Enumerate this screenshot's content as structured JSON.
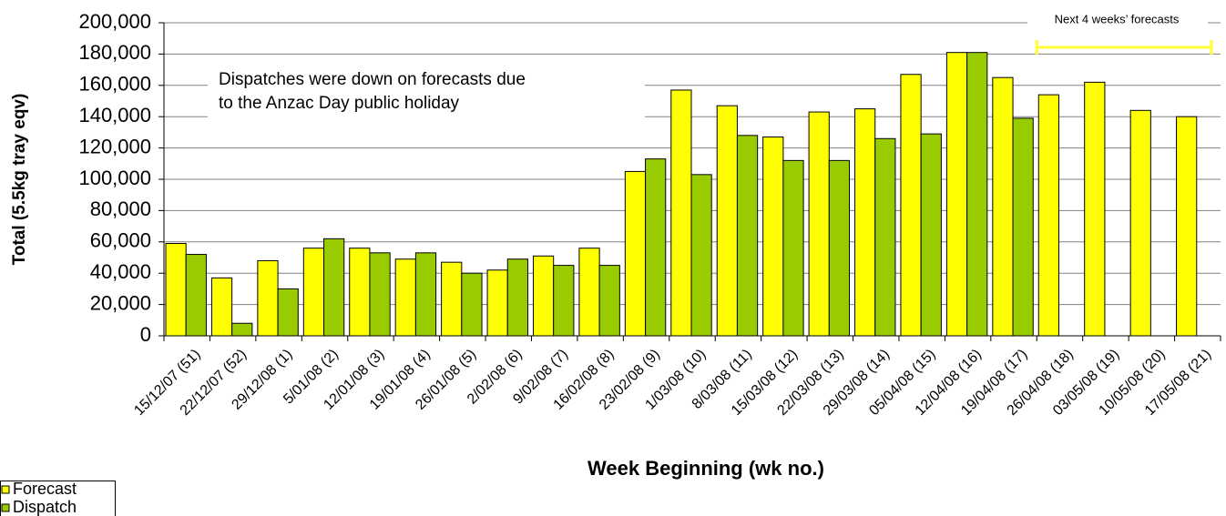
{
  "chart_data": {
    "type": "bar",
    "x_label": "Week Beginning (wk no.)",
    "y_label": "Total (5.5kg tray eqv)",
    "annotation": [
      "Dispatches were down on forecasts due",
      "to the Anzac Day public holiday"
    ],
    "bracket_label": "Next 4 weeks’ forecasts",
    "bracket_color": "#ffff33",
    "categories": [
      "15/12/07 (51)",
      "22/12/07 (52)",
      "29/12/08 (1)",
      "5/01/08 (2)",
      "12/01/08 (3)",
      "19/01/08 (4)",
      "26/01/08 (5)",
      "2/02/08 (6)",
      "9/02/08 (7)",
      "16/02/08 (8)",
      "23/02/08 (9)",
      "1/03/08 (10)",
      "8/03/08 (11)",
      "15/03/08 (12)",
      "22/03/08 (13)",
      "29/03/08 (14)",
      "05/04/08 (15)",
      "12/04/08 (16)",
      "19/04/08 (17)",
      "26/04/08 (18)",
      "03/05/08 (19)",
      "10/05/08 (20)",
      "17/05/08 (21)"
    ],
    "series": [
      {
        "name": "Forecast",
        "color": "#ffff00",
        "values": [
          59000,
          37000,
          48000,
          56000,
          56000,
          49000,
          47000,
          42000,
          51000,
          56000,
          105000,
          157000,
          147000,
          127000,
          143000,
          145000,
          167000,
          181000,
          165000,
          154000,
          162000,
          144000,
          140000
        ]
      },
      {
        "name": "Dispatch",
        "color": "#99cc00",
        "values": [
          52000,
          8000,
          30000,
          62000,
          53000,
          53000,
          40000,
          49000,
          45000,
          45000,
          113000,
          103000,
          128000,
          112000,
          112000,
          126000,
          129000,
          181000,
          139000,
          null,
          null,
          null,
          null
        ]
      }
    ],
    "ylim": [
      0,
      200000
    ],
    "yticks": [
      0,
      {
        "value": 20000,
        "label": "20,000"
      },
      {
        "value": 40000,
        "label": "40,000"
      },
      {
        "value": 60000,
        "label": "60,000"
      },
      {
        "value": 80000,
        "label": "80,000"
      },
      {
        "value": 100000,
        "label": "100,000"
      },
      {
        "value": 120000,
        "label": "120,000"
      },
      {
        "value": 140000,
        "label": "140,000"
      },
      {
        "value": 160000,
        "label": "160,000"
      },
      {
        "value": 180000,
        "label": "180,000"
      },
      {
        "value": 200000,
        "label": "200,000"
      }
    ],
    "grid": true,
    "legend": "bottom-left"
  }
}
